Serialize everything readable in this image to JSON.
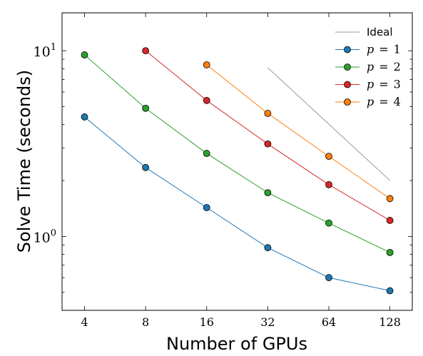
{
  "chart_data": {
    "type": "line",
    "xlabel": "Number of GPUs",
    "ylabel": "Solve Time (seconds)",
    "x_scale": "log2",
    "y_scale": "log10",
    "x_ticks": [
      4,
      8,
      16,
      32,
      64,
      128
    ],
    "x_tick_labels": [
      "4",
      "8",
      "16",
      "32",
      "64",
      "128"
    ],
    "y_major_ticks": [
      1,
      10
    ],
    "y_tick_labels": [
      {
        "base": "10",
        "exp": "0"
      },
      {
        "base": "10",
        "exp": "1"
      }
    ],
    "xlim": [
      3.1,
      165
    ],
    "ylim": [
      0.4,
      16
    ],
    "grid": false,
    "legend_position": "top-right",
    "ideal": {
      "name": "Ideal",
      "x": [
        32,
        128
      ],
      "y": [
        8.1,
        2.0
      ],
      "color": "#999999"
    },
    "series": [
      {
        "name": "p = 1",
        "label_var": "p",
        "label_op": "=",
        "label_num": "1",
        "color": "#1f77b4",
        "x": [
          4,
          8,
          16,
          32,
          64,
          128
        ],
        "y": [
          4.4,
          2.35,
          1.43,
          0.87,
          0.6,
          0.51
        ]
      },
      {
        "name": "p = 2",
        "label_var": "p",
        "label_op": "=",
        "label_num": "2",
        "color": "#2ca02c",
        "x": [
          4,
          8,
          16,
          32,
          64,
          128
        ],
        "y": [
          9.5,
          4.9,
          2.8,
          1.72,
          1.18,
          0.82
        ]
      },
      {
        "name": "p = 3",
        "label_var": "p",
        "label_op": "=",
        "label_num": "3",
        "color": "#d62728",
        "x": [
          8,
          16,
          32,
          64,
          128
        ],
        "y": [
          10.0,
          5.4,
          3.15,
          1.9,
          1.22
        ]
      },
      {
        "name": "p = 4",
        "label_var": "p",
        "label_op": "=",
        "label_num": "4",
        "color": "#ff7f0e",
        "x": [
          16,
          32,
          64,
          128
        ],
        "y": [
          8.4,
          4.6,
          2.7,
          1.6
        ]
      }
    ]
  }
}
